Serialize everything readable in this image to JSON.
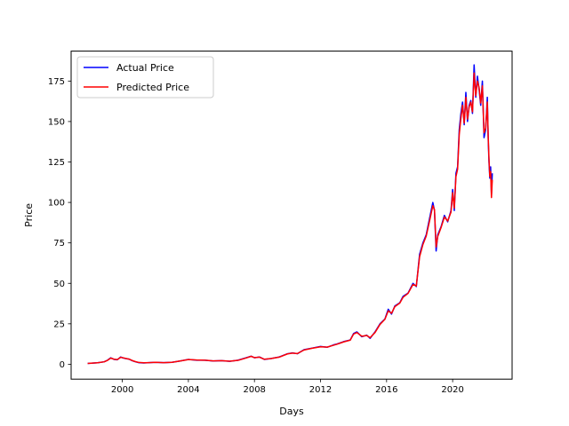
{
  "chart_data": {
    "type": "line",
    "title": "",
    "xlabel": "Days",
    "ylabel": "Price",
    "xlim": [
      1996.9,
      2023.6
    ],
    "ylim": [
      -9.2,
      193.5
    ],
    "x_ticks": [
      2000,
      2004,
      2008,
      2012,
      2016,
      2020
    ],
    "y_ticks": [
      0,
      25,
      50,
      75,
      100,
      125,
      150,
      175
    ],
    "grid": false,
    "legend_position": "upper-left",
    "series": [
      {
        "name": "Actual Price",
        "color": "#0000ff",
        "x": [
          1997.9,
          1998.2,
          1998.5,
          1998.9,
          1999.1,
          1999.3,
          1999.5,
          1999.7,
          1999.9,
          2000.0,
          2000.2,
          2000.4,
          2000.6,
          2000.8,
          2001.0,
          2001.3,
          2001.6,
          2002.0,
          2002.5,
          2003.0,
          2003.5,
          2004.0,
          2004.5,
          2005.0,
          2005.5,
          2006.0,
          2006.5,
          2007.0,
          2007.5,
          2007.8,
          2008.0,
          2008.3,
          2008.6,
          2009.0,
          2009.5,
          2010.0,
          2010.3,
          2010.6,
          2011.0,
          2011.5,
          2012.0,
          2012.4,
          2012.8,
          2013.0,
          2013.4,
          2013.8,
          2014.0,
          2014.2,
          2014.5,
          2014.8,
          2015.0,
          2015.3,
          2015.6,
          2015.9,
          2016.1,
          2016.3,
          2016.5,
          2016.8,
          2017.0,
          2017.3,
          2017.6,
          2017.8,
          2018.0,
          2018.2,
          2018.4,
          2018.6,
          2018.8,
          2018.9,
          2019.0,
          2019.1,
          2019.3,
          2019.5,
          2019.7,
          2019.9,
          2020.0,
          2020.1,
          2020.2,
          2020.3,
          2020.4,
          2020.5,
          2020.6,
          2020.7,
          2020.8,
          2020.9,
          2021.0,
          2021.1,
          2021.2,
          2021.3,
          2021.4,
          2021.5,
          2021.6,
          2021.7,
          2021.8,
          2021.9,
          2022.0,
          2022.1,
          2022.15,
          2022.2,
          2022.25,
          2022.3,
          2022.35,
          2022.4
        ],
        "values": [
          0.5,
          0.7,
          0.9,
          1.5,
          2.5,
          4.0,
          3.0,
          2.8,
          4.5,
          4.0,
          3.5,
          3.2,
          2.2,
          1.5,
          1.0,
          0.8,
          1.0,
          1.2,
          1.0,
          1.2,
          2.0,
          3.0,
          2.5,
          2.5,
          2.0,
          2.2,
          1.8,
          2.5,
          4.0,
          5.0,
          4.0,
          4.5,
          3.0,
          3.5,
          4.5,
          6.5,
          7.0,
          6.5,
          9.0,
          10.0,
          11.0,
          10.5,
          12.0,
          12.5,
          14.0,
          15.0,
          19.0,
          20.0,
          17.0,
          18.0,
          16.0,
          20.0,
          25.0,
          28.0,
          34.0,
          31.0,
          36.0,
          38.0,
          42.0,
          44.0,
          50.0,
          48.0,
          68.0,
          75.0,
          80.0,
          90.0,
          100.0,
          95.0,
          70.0,
          80.0,
          85.0,
          92.0,
          88.0,
          95.0,
          108.0,
          95.0,
          118.0,
          122.0,
          145.0,
          155.0,
          162.0,
          148.0,
          168.0,
          150.0,
          160.0,
          163.0,
          155.0,
          185.0,
          165.0,
          178.0,
          170.0,
          160.0,
          175.0,
          140.0,
          145.0,
          165.0,
          140.0,
          125.0,
          115.0,
          122.0,
          105.0,
          118.0
        ]
      },
      {
        "name": "Predicted Price",
        "color": "#ff0000",
        "x": [
          1997.9,
          1998.2,
          1998.5,
          1998.9,
          1999.1,
          1999.3,
          1999.5,
          1999.7,
          1999.9,
          2000.0,
          2000.2,
          2000.4,
          2000.6,
          2000.8,
          2001.0,
          2001.3,
          2001.6,
          2002.0,
          2002.5,
          2003.0,
          2003.5,
          2004.0,
          2004.5,
          2005.0,
          2005.5,
          2006.0,
          2006.5,
          2007.0,
          2007.5,
          2007.8,
          2008.0,
          2008.3,
          2008.6,
          2009.0,
          2009.5,
          2010.0,
          2010.3,
          2010.6,
          2011.0,
          2011.5,
          2012.0,
          2012.4,
          2012.8,
          2013.0,
          2013.4,
          2013.8,
          2014.0,
          2014.2,
          2014.5,
          2014.8,
          2015.0,
          2015.3,
          2015.6,
          2015.9,
          2016.1,
          2016.3,
          2016.5,
          2016.8,
          2017.0,
          2017.3,
          2017.6,
          2017.8,
          2018.0,
          2018.2,
          2018.4,
          2018.6,
          2018.8,
          2018.9,
          2019.0,
          2019.1,
          2019.3,
          2019.5,
          2019.7,
          2019.9,
          2020.0,
          2020.1,
          2020.2,
          2020.3,
          2020.4,
          2020.5,
          2020.6,
          2020.7,
          2020.8,
          2020.9,
          2021.0,
          2021.1,
          2021.2,
          2021.3,
          2021.4,
          2021.5,
          2021.6,
          2021.7,
          2021.8,
          2021.9,
          2022.0,
          2022.1,
          2022.15,
          2022.2,
          2022.25,
          2022.3,
          2022.35,
          2022.4
        ],
        "values": [
          0.5,
          0.7,
          0.9,
          1.5,
          2.4,
          3.8,
          3.1,
          2.9,
          4.3,
          4.1,
          3.6,
          3.2,
          2.3,
          1.6,
          1.1,
          0.9,
          1.0,
          1.2,
          1.0,
          1.2,
          2.0,
          2.9,
          2.6,
          2.5,
          2.1,
          2.2,
          1.9,
          2.4,
          3.9,
          4.9,
          4.1,
          4.4,
          3.1,
          3.5,
          4.4,
          6.4,
          6.9,
          6.6,
          8.8,
          9.9,
          10.8,
          10.6,
          11.8,
          12.4,
          13.8,
          14.9,
          18.6,
          19.6,
          17.3,
          17.8,
          16.4,
          19.6,
          24.6,
          27.8,
          33.0,
          31.5,
          35.6,
          37.8,
          41.4,
          43.8,
          49.3,
          48.4,
          66.5,
          74.0,
          79.2,
          88.5,
          98.0,
          95.5,
          72.5,
          79.0,
          84.5,
          91.0,
          88.5,
          94.0,
          106.0,
          96.5,
          116.0,
          120.5,
          142.0,
          152.0,
          160.0,
          149.0,
          165.0,
          151.5,
          159.0,
          162.0,
          156.0,
          180.0,
          166.0,
          175.0,
          171.0,
          161.5,
          172.0,
          143.0,
          146.0,
          162.0,
          142.0,
          127.0,
          116.0,
          119.0,
          103.0,
          114.0
        ]
      }
    ]
  }
}
